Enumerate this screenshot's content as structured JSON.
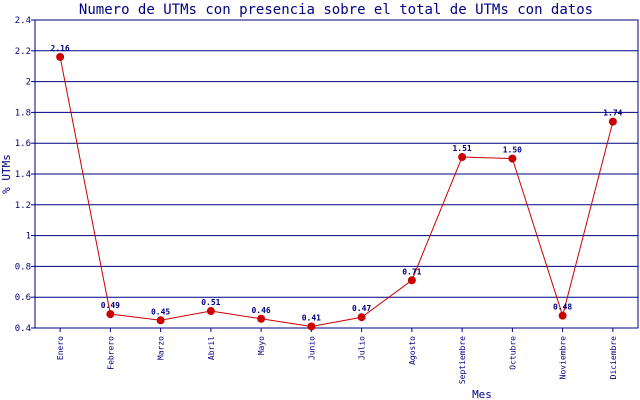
{
  "chart_data": {
    "type": "line",
    "title": "Numero de UTMs con presencia sobre el total de UTMs con datos",
    "xlabel": "Mes",
    "ylabel": "% UTMs",
    "categories": [
      "Enero",
      "Febrero",
      "Marzo",
      "Abril",
      "Mayo",
      "Junio",
      "Julio",
      "Agosto",
      "Septiembre",
      "Octubre",
      "Noviembre",
      "Diciembre"
    ],
    "series": [
      {
        "values": [
          2.16,
          0.49,
          0.45,
          0.51,
          0.46,
          0.41,
          0.47,
          0.71,
          1.51,
          1.5,
          0.48,
          1.74
        ],
        "labels": [
          "2.16",
          "0.49",
          "0.45",
          "0.51",
          "0.46",
          "0.41",
          "0.47",
          "0.71",
          "1.51",
          "1.50",
          "0.48",
          "1.74"
        ]
      }
    ],
    "ylim": [
      0.4,
      2.4
    ],
    "yticks": [
      "0.4",
      "0.6",
      "0.8",
      "1",
      "1.2",
      "1.4",
      "1.6",
      "1.8",
      "2",
      "2.2",
      "2.4"
    ],
    "grid": true,
    "colors": {
      "line": "#cc0000",
      "marker": "#cc0000",
      "grid": "#000080",
      "text": "#000080"
    }
  }
}
